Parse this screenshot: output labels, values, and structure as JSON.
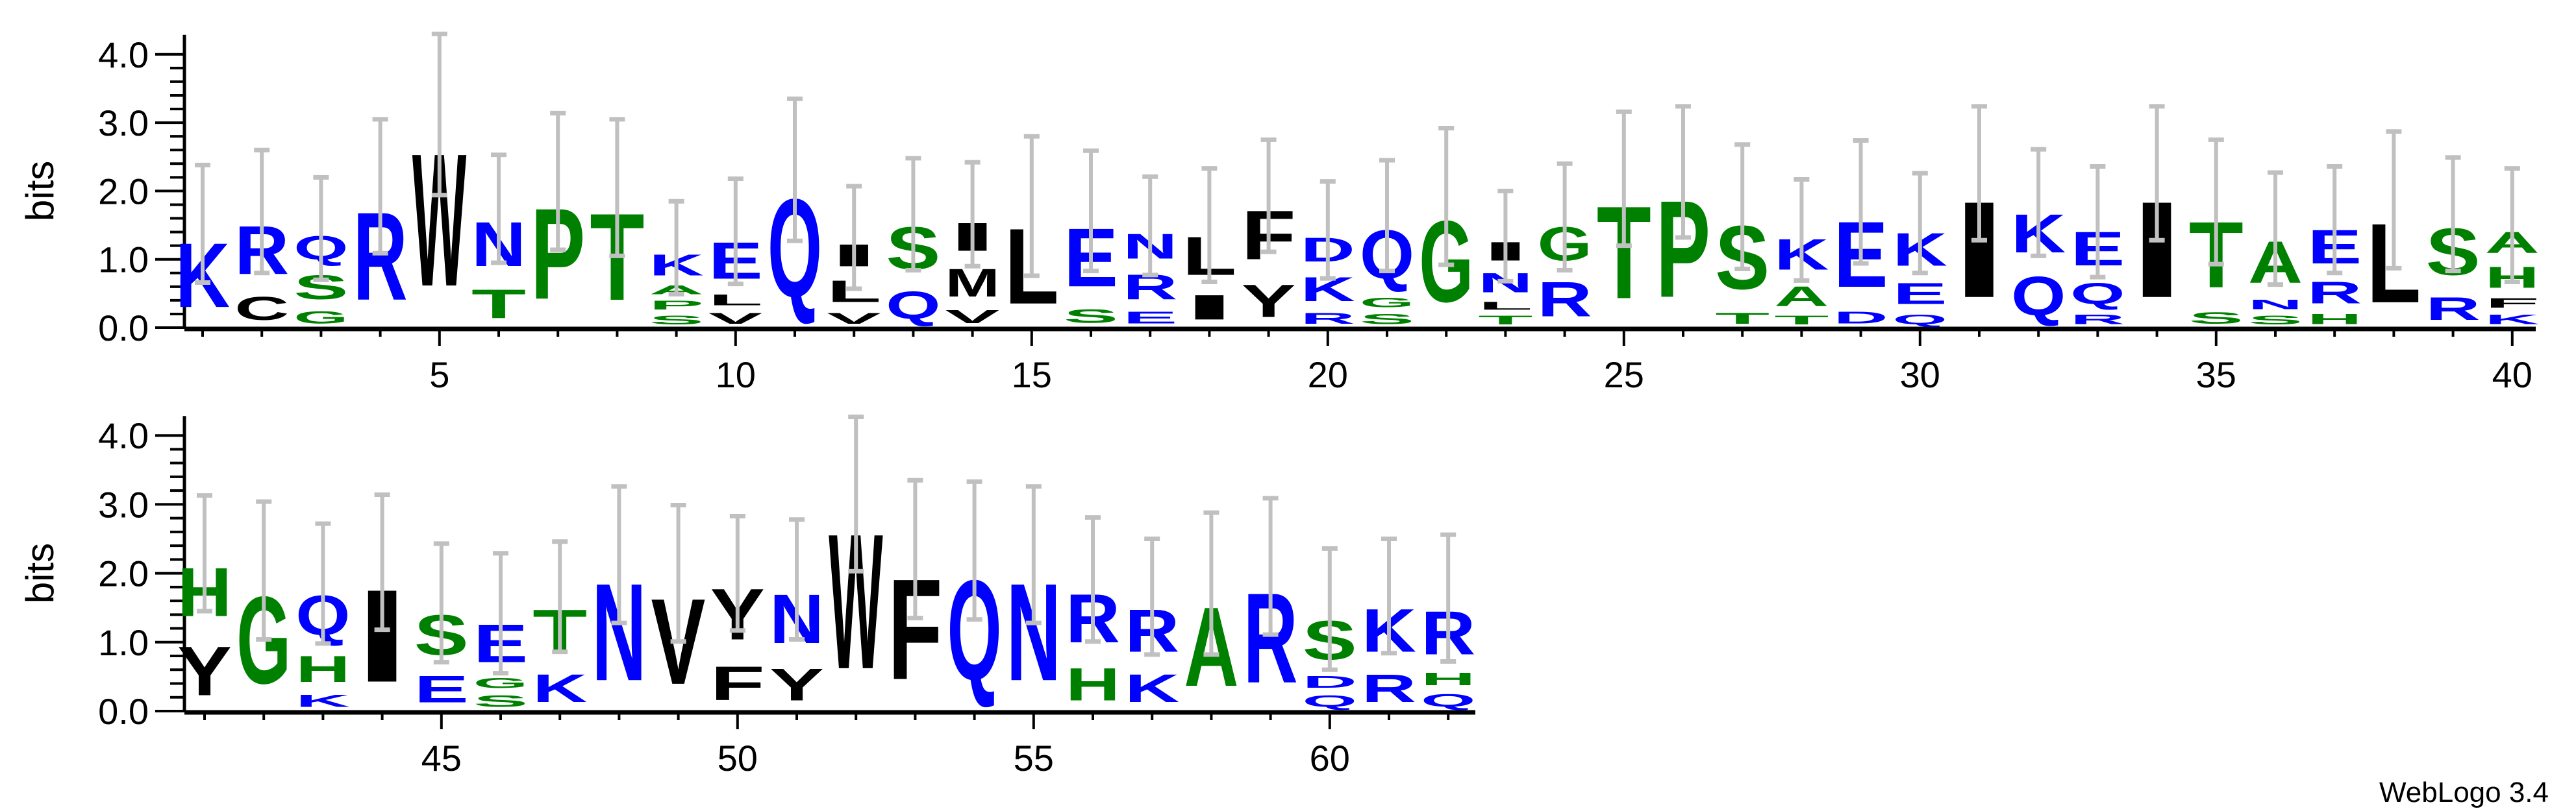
{
  "chart_data": {
    "type": "sequence-logo",
    "ylabel": "bits",
    "ylim": [
      0,
      4.0
    ],
    "yticks": [
      "0.0",
      "1.0",
      "2.0",
      "3.0",
      "4.0"
    ],
    "xtick_labels": [
      5,
      10,
      15,
      20,
      25,
      30,
      35,
      40,
      45,
      50,
      55,
      60
    ],
    "rows": [
      [
        1,
        40
      ],
      [
        41,
        62
      ]
    ],
    "error_bars": true,
    "error_bar_color": "#c0c0c0",
    "colors": {
      "blue": "#0000ff",
      "green": "#008000",
      "black": "#000000"
    },
    "letter_colors": {
      "K": "blue",
      "R": "blue",
      "Q": "blue",
      "N": "blue",
      "E": "blue",
      "D": "blue",
      "S": "green",
      "G": "green",
      "T": "green",
      "P": "green",
      "A": "green",
      "H": "green",
      "W": "black",
      "L": "black",
      "V": "black",
      "I": "black",
      "M": "black",
      "F": "black",
      "Y": "black",
      "C": "black"
    },
    "positions": [
      {
        "pos": 1,
        "letters": [
          [
            "K",
            1.52
          ]
        ],
        "err": 0.86
      },
      {
        "pos": 2,
        "letters": [
          [
            "R",
            1.14
          ],
          [
            "C",
            0.56
          ]
        ],
        "err": 0.9
      },
      {
        "pos": 3,
        "letters": [
          [
            "Q",
            0.57
          ],
          [
            "S",
            0.58
          ],
          [
            "G",
            0.3
          ]
        ],
        "err": 0.75
      },
      {
        "pos": 4,
        "letters": [
          [
            "R",
            2.07
          ]
        ],
        "err": 0.98
      },
      {
        "pos": 5,
        "letters": [
          [
            "W",
            3.12
          ]
        ],
        "err": 1.18
      },
      {
        "pos": 6,
        "letters": [
          [
            "N",
            1.05
          ],
          [
            "T",
            0.69
          ]
        ],
        "err": 0.79
      },
      {
        "pos": 7,
        "letters": [
          [
            "P",
            2.14
          ]
        ],
        "err": 1.0
      },
      {
        "pos": 8,
        "letters": [
          [
            "T",
            2.05
          ]
        ],
        "err": 1.0
      },
      {
        "pos": 9,
        "letters": [
          [
            "K",
            0.51
          ],
          [
            "A",
            0.22
          ],
          [
            "P",
            0.22
          ],
          [
            "S",
            0.22
          ]
        ],
        "err": 0.68
      },
      {
        "pos": 10,
        "letters": [
          [
            "E",
            0.87
          ],
          [
            "L",
            0.27
          ],
          [
            "V",
            0.27
          ]
        ],
        "err": 0.77
      },
      {
        "pos": 11,
        "letters": [
          [
            "Q",
            2.31
          ]
        ],
        "err": 1.04
      },
      {
        "pos": 12,
        "letters": [
          [
            "I",
            0.53
          ],
          [
            "L",
            0.52
          ],
          [
            "V",
            0.27
          ]
        ],
        "err": 0.75
      },
      {
        "pos": 13,
        "letters": [
          [
            "S",
            1.0
          ],
          [
            "Q",
            0.66
          ]
        ],
        "err": 0.82
      },
      {
        "pos": 14,
        "letters": [
          [
            "I",
            0.67
          ],
          [
            "M",
            0.67
          ],
          [
            "V",
            0.32
          ]
        ],
        "err": 0.76
      },
      {
        "pos": 15,
        "letters": [
          [
            "L",
            1.78
          ]
        ],
        "err": 1.02
      },
      {
        "pos": 16,
        "letters": [
          [
            "E",
            1.38
          ],
          [
            "S",
            0.33
          ]
        ],
        "err": 0.88
      },
      {
        "pos": 17,
        "letters": [
          [
            "N",
            0.6
          ],
          [
            "R",
            0.6
          ],
          [
            "E",
            0.29
          ]
        ],
        "err": 0.72
      },
      {
        "pos": 18,
        "letters": [
          [
            "L",
            0.91
          ],
          [
            "I",
            0.59
          ]
        ],
        "err": 0.83
      },
      {
        "pos": 19,
        "letters": [
          [
            "F",
            1.16
          ],
          [
            "Y",
            0.77
          ]
        ],
        "err": 0.82
      },
      {
        "pos": 20,
        "letters": [
          [
            "D",
            0.58
          ],
          [
            "K",
            0.58
          ],
          [
            "R",
            0.27
          ]
        ],
        "err": 0.71
      },
      {
        "pos": 21,
        "letters": [
          [
            "Q",
            1.15
          ],
          [
            "G",
            0.24
          ],
          [
            "S",
            0.25
          ]
        ],
        "err": 0.81
      },
      {
        "pos": 22,
        "letters": [
          [
            "G",
            1.92
          ]
        ],
        "err": 1.0
      },
      {
        "pos": 23,
        "letters": [
          [
            "I",
            0.45
          ],
          [
            "N",
            0.47
          ],
          [
            "L",
            0.2
          ],
          [
            "T",
            0.22
          ]
        ],
        "err": 0.66
      },
      {
        "pos": 24,
        "letters": [
          [
            "G",
            0.8
          ],
          [
            "R",
            0.82
          ]
        ],
        "err": 0.78
      },
      {
        "pos": 25,
        "letters": [
          [
            "T",
            2.18
          ]
        ],
        "err": 0.98
      },
      {
        "pos": 26,
        "letters": [
          [
            "P",
            2.28
          ]
        ],
        "err": 0.96
      },
      {
        "pos": 27,
        "letters": [
          [
            "S",
            1.5
          ],
          [
            "T",
            0.27
          ]
        ],
        "err": 0.91
      },
      {
        "pos": 28,
        "letters": [
          [
            "K",
            0.73
          ],
          [
            "A",
            0.48
          ],
          [
            "T",
            0.22
          ]
        ],
        "err": 0.74
      },
      {
        "pos": 29,
        "letters": [
          [
            "E",
            1.55
          ],
          [
            "D",
            0.29
          ]
        ],
        "err": 0.9
      },
      {
        "pos": 30,
        "letters": [
          [
            "K",
            0.78
          ],
          [
            "E",
            0.51
          ],
          [
            "Q",
            0.24
          ]
        ],
        "err": 0.73
      },
      {
        "pos": 31,
        "letters": [
          [
            "I",
            2.26
          ]
        ],
        "err": 0.98
      },
      {
        "pos": 32,
        "letters": [
          [
            "K",
            0.91
          ],
          [
            "Q",
            0.92
          ]
        ],
        "err": 0.78
      },
      {
        "pos": 33,
        "letters": [
          [
            "E",
            0.8
          ],
          [
            "Q",
            0.51
          ],
          [
            "R",
            0.24
          ]
        ],
        "err": 0.81
      },
      {
        "pos": 34,
        "letters": [
          [
            "I",
            2.26
          ]
        ],
        "err": 0.98
      },
      {
        "pos": 35,
        "letters": [
          [
            "T",
            1.56
          ],
          [
            "S",
            0.28
          ]
        ],
        "err": 0.91
      },
      {
        "pos": 36,
        "letters": [
          [
            "A",
            0.99
          ],
          [
            "N",
            0.24
          ],
          [
            "S",
            0.22
          ]
        ],
        "err": 0.82
      },
      {
        "pos": 37,
        "letters": [
          [
            "E",
            0.8
          ],
          [
            "R",
            0.53
          ],
          [
            "H",
            0.25
          ]
        ],
        "err": 0.78
      },
      {
        "pos": 38,
        "letters": [
          [
            "L",
            1.87
          ]
        ],
        "err": 1.0
      },
      {
        "pos": 39,
        "letters": [
          [
            "S",
            1.11
          ],
          [
            "R",
            0.55
          ]
        ],
        "err": 0.83
      },
      {
        "pos": 40,
        "letters": [
          [
            "A",
            0.51
          ],
          [
            "H",
            0.51
          ],
          [
            "F",
            0.24
          ],
          [
            "K",
            0.24
          ]
        ],
        "err": 0.83
      },
      {
        "pos": 41,
        "letters": [
          [
            "H",
            1.14
          ],
          [
            "Y",
            1.15
          ]
        ],
        "err": 0.84
      },
      {
        "pos": 42,
        "letters": [
          [
            "G",
            2.04
          ]
        ],
        "err": 1.0
      },
      {
        "pos": 43,
        "letters": [
          [
            "Q",
            0.93
          ],
          [
            "H",
            0.62
          ],
          [
            "K",
            0.3
          ]
        ],
        "err": 0.87
      },
      {
        "pos": 44,
        "letters": [
          [
            "I",
            2.16
          ]
        ],
        "err": 0.98
      },
      {
        "pos": 45,
        "letters": [
          [
            "S",
            0.94
          ],
          [
            "E",
            0.63
          ]
        ],
        "err": 0.86
      },
      {
        "pos": 46,
        "letters": [
          [
            "E",
            0.89
          ],
          [
            "G",
            0.25
          ],
          [
            "S",
            0.28
          ]
        ],
        "err": 0.87
      },
      {
        "pos": 47,
        "letters": [
          [
            "T",
            1.0
          ],
          [
            "K",
            0.66
          ]
        ],
        "err": 0.8
      },
      {
        "pos": 48,
        "letters": [
          [
            "N",
            2.27
          ]
        ],
        "err": 0.99
      },
      {
        "pos": 49,
        "letters": [
          [
            "V",
            2.0
          ]
        ],
        "err": 0.99
      },
      {
        "pos": 50,
        "letters": [
          [
            "Y",
            1.2
          ],
          [
            "F",
            0.8
          ]
        ],
        "err": 0.83
      },
      {
        "pos": 51,
        "letters": [
          [
            "N",
            1.15
          ],
          [
            "Y",
            0.76
          ]
        ],
        "err": 0.87
      },
      {
        "pos": 52,
        "letters": [
          [
            "W",
            3.15
          ]
        ],
        "err": 1.12
      },
      {
        "pos": 53,
        "letters": [
          [
            "F",
            2.35
          ]
        ],
        "err": 1.0
      },
      {
        "pos": 54,
        "letters": [
          [
            "Q",
            2.33
          ]
        ],
        "err": 1.0
      },
      {
        "pos": 55,
        "letters": [
          [
            "N",
            2.27
          ]
        ],
        "err": 0.99
      },
      {
        "pos": 56,
        "letters": [
          [
            "R",
            1.14
          ],
          [
            "H",
            0.77
          ]
        ],
        "err": 0.9
      },
      {
        "pos": 57,
        "letters": [
          [
            "R",
            1.0
          ],
          [
            "K",
            0.66
          ]
        ],
        "err": 0.84
      },
      {
        "pos": 58,
        "letters": [
          [
            "A",
            1.85
          ]
        ],
        "err": 1.03
      },
      {
        "pos": 59,
        "letters": [
          [
            "R",
            2.1
          ]
        ],
        "err": 0.99
      },
      {
        "pos": 60,
        "letters": [
          [
            "S",
            0.91
          ],
          [
            "D",
            0.29
          ],
          [
            "Q",
            0.28
          ]
        ],
        "err": 0.88
      },
      {
        "pos": 61,
        "letters": [
          [
            "K",
            1.01
          ],
          [
            "R",
            0.66
          ]
        ],
        "err": 0.83
      },
      {
        "pos": 62,
        "letters": [
          [
            "R",
            1.02
          ],
          [
            "H",
            0.31
          ],
          [
            "Q",
            0.31
          ]
        ],
        "err": 0.92
      }
    ]
  },
  "footer": {
    "credit": "WebLogo 3.4"
  }
}
